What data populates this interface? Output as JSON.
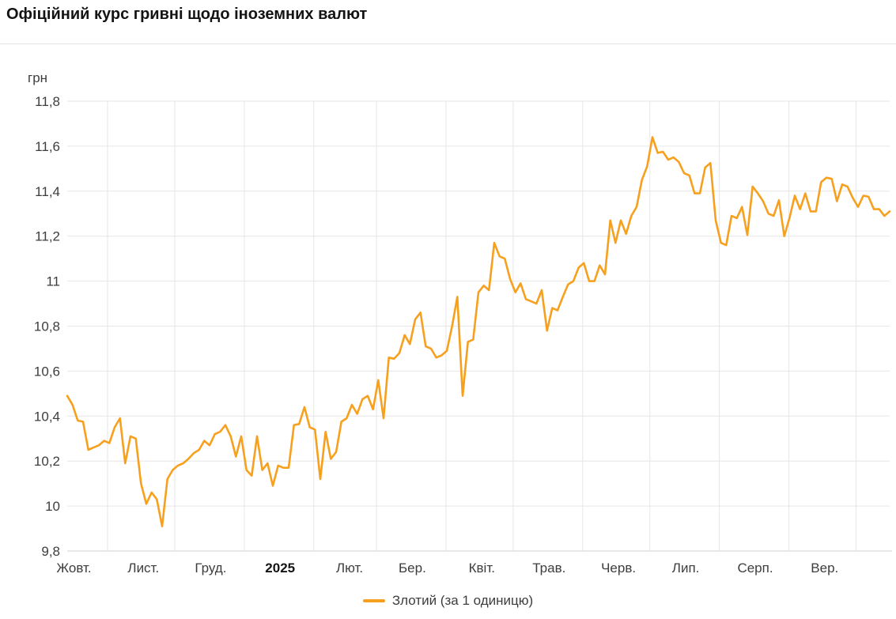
{
  "page": {
    "title": "Офіційний курс гривні щодо іноземних валют"
  },
  "chart_data": {
    "type": "line",
    "title": "Офіційний курс гривні щодо іноземних валют",
    "grid": true,
    "grid_color": "#e6e6e6",
    "axis_line_color": "#d2d2d2",
    "legend_position": "bottom-center",
    "y_axis": {
      "title": "грн",
      "min": 9.8,
      "max": 11.8,
      "ticks": [
        {
          "value": 11.8,
          "label": "11,8"
        },
        {
          "value": 11.6,
          "label": "11,6"
        },
        {
          "value": 11.4,
          "label": "11,4"
        },
        {
          "value": 11.2,
          "label": "11,2"
        },
        {
          "value": 11.0,
          "label": "11"
        },
        {
          "value": 10.8,
          "label": "10,8"
        },
        {
          "value": 10.6,
          "label": "10,6"
        },
        {
          "value": 10.4,
          "label": "10,4"
        },
        {
          "value": 10.2,
          "label": "10,2"
        },
        {
          "value": 10.0,
          "label": "10"
        },
        {
          "value": 9.8,
          "label": "9,8"
        }
      ]
    },
    "x_axis": {
      "labels": [
        {
          "label": "Жовт.",
          "bold": false
        },
        {
          "label": "Лист.",
          "bold": false
        },
        {
          "label": "Груд.",
          "bold": false
        },
        {
          "label": "2025",
          "bold": true
        },
        {
          "label": "Лют.",
          "bold": false
        },
        {
          "label": "Бер.",
          "bold": false
        },
        {
          "label": "Квіт.",
          "bold": false
        },
        {
          "label": "Трав.",
          "bold": false
        },
        {
          "label": "Черв.",
          "bold": false
        },
        {
          "label": "Лип.",
          "bold": false
        },
        {
          "label": "Серп.",
          "bold": false
        },
        {
          "label": "Вер.",
          "bold": false
        }
      ]
    },
    "series": [
      {
        "name": "Злотий (за 1 одиницю)",
        "color": "#f7a01e",
        "values": [
          10.49,
          10.45,
          10.38,
          10.375,
          10.25,
          10.26,
          10.27,
          10.29,
          10.28,
          10.35,
          10.39,
          10.19,
          10.31,
          10.3,
          10.1,
          10.01,
          10.06,
          10.03,
          9.91,
          10.12,
          10.16,
          10.18,
          10.19,
          10.21,
          10.235,
          10.25,
          10.29,
          10.27,
          10.32,
          10.33,
          10.36,
          10.31,
          10.22,
          10.31,
          10.16,
          10.135,
          10.31,
          10.16,
          10.19,
          10.09,
          10.18,
          10.17,
          10.17,
          10.36,
          10.365,
          10.44,
          10.35,
          10.34,
          10.12,
          10.33,
          10.21,
          10.24,
          10.375,
          10.39,
          10.45,
          10.41,
          10.475,
          10.49,
          10.43,
          10.56,
          10.39,
          10.66,
          10.655,
          10.68,
          10.76,
          10.72,
          10.83,
          10.86,
          10.71,
          10.7,
          10.66,
          10.67,
          10.69,
          10.8,
          10.93,
          10.49,
          10.73,
          10.74,
          10.95,
          10.98,
          10.96,
          11.17,
          11.11,
          11.1,
          11.01,
          10.95,
          10.99,
          10.92,
          10.91,
          10.9,
          10.96,
          10.78,
          10.88,
          10.87,
          10.93,
          10.985,
          11.0,
          11.06,
          11.08,
          11.0,
          11.0,
          11.07,
          11.03,
          11.27,
          11.17,
          11.27,
          11.21,
          11.29,
          11.33,
          11.45,
          11.51,
          11.64,
          11.57,
          11.575,
          11.54,
          11.55,
          11.53,
          11.48,
          11.47,
          11.39,
          11.39,
          11.505,
          11.525,
          11.27,
          11.17,
          11.16,
          11.29,
          11.28,
          11.33,
          11.205,
          11.42,
          11.39,
          11.355,
          11.3,
          11.29,
          11.36,
          11.2,
          11.28,
          11.38,
          11.32,
          11.39,
          11.31,
          11.31,
          11.44,
          11.46,
          11.455,
          11.355,
          11.43,
          11.42,
          11.37,
          11.33,
          11.38,
          11.375,
          11.32,
          11.32,
          11.29,
          11.31
        ]
      }
    ]
  }
}
